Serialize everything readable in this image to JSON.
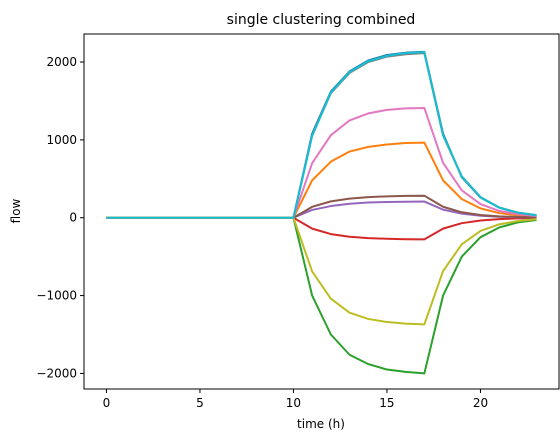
{
  "chart_data": {
    "type": "line",
    "title": "single clustering combined",
    "xlabel": "time (h)",
    "ylabel": "flow",
    "xlim": [
      -1.2,
      24.2
    ],
    "ylim": [
      -2200,
      2360
    ],
    "xticks": [
      0,
      5,
      10,
      15,
      20
    ],
    "yticks": [
      -2000,
      -1000,
      0,
      1000,
      2000
    ],
    "xtick_labels": [
      "0",
      "5",
      "10",
      "15",
      "20"
    ],
    "ytick_labels": [
      "−2000",
      "−1000",
      "0",
      "1000",
      "2000"
    ],
    "grid": false,
    "legend": "none",
    "x": [
      0,
      1,
      2,
      3,
      4,
      5,
      6,
      7,
      8,
      9,
      10,
      11,
      12,
      13,
      14,
      15,
      16,
      17,
      18,
      19,
      20,
      21,
      22,
      23
    ],
    "series": [
      {
        "color": "#1f77b4",
        "values": [
          0,
          0,
          0,
          0,
          0,
          0,
          0,
          0,
          0,
          0,
          0,
          1080,
          1620,
          1880,
          2020,
          2090,
          2120,
          2130,
          1080,
          520,
          260,
          130,
          60,
          30
        ]
      },
      {
        "color": "#ff7f0e",
        "values": [
          0,
          0,
          0,
          0,
          0,
          0,
          0,
          0,
          0,
          0,
          0,
          480,
          720,
          850,
          910,
          940,
          960,
          965,
          480,
          240,
          120,
          60,
          30,
          15
        ]
      },
      {
        "color": "#2ca02c",
        "values": [
          0,
          0,
          0,
          0,
          0,
          0,
          0,
          0,
          0,
          0,
          0,
          -1000,
          -1500,
          -1760,
          -1880,
          -1950,
          -1980,
          -2000,
          -1000,
          -500,
          -250,
          -125,
          -60,
          -30
        ]
      },
      {
        "color": "#d62728",
        "values": [
          0,
          0,
          0,
          0,
          0,
          0,
          0,
          0,
          0,
          0,
          0,
          -140,
          -210,
          -245,
          -262,
          -270,
          -276,
          -278,
          -140,
          -70,
          -35,
          -18,
          -9,
          -4
        ]
      },
      {
        "color": "#9467bd",
        "values": [
          0,
          0,
          0,
          0,
          0,
          0,
          0,
          0,
          0,
          0,
          0,
          100,
          150,
          180,
          195,
          202,
          206,
          208,
          104,
          52,
          26,
          13,
          6,
          3
        ]
      },
      {
        "color": "#8c564b",
        "values": [
          0,
          0,
          0,
          0,
          0,
          0,
          0,
          0,
          0,
          0,
          0,
          140,
          210,
          245,
          265,
          275,
          280,
          283,
          141,
          70,
          35,
          18,
          9,
          4
        ]
      },
      {
        "color": "#e377c2",
        "values": [
          0,
          0,
          0,
          0,
          0,
          0,
          0,
          0,
          0,
          0,
          0,
          700,
          1060,
          1250,
          1340,
          1385,
          1405,
          1410,
          705,
          352,
          176,
          88,
          44,
          22
        ]
      },
      {
        "color": "#7f7f7f",
        "values": [
          0,
          0,
          0,
          0,
          0,
          0,
          0,
          0,
          0,
          0,
          0,
          1060,
          1600,
          1860,
          2000,
          2070,
          2100,
          2115,
          1058,
          530,
          265,
          132,
          66,
          33
        ]
      },
      {
        "color": "#bcbd22",
        "values": [
          0,
          0,
          0,
          0,
          0,
          0,
          0,
          0,
          0,
          0,
          0,
          -690,
          -1040,
          -1220,
          -1300,
          -1340,
          -1360,
          -1370,
          -685,
          -342,
          -170,
          -85,
          -42,
          -20
        ]
      },
      {
        "color": "#17becf",
        "values": [
          0,
          0,
          0,
          0,
          0,
          0,
          0,
          0,
          0,
          0,
          0,
          1050,
          1610,
          1870,
          2010,
          2080,
          2115,
          2125,
          1060,
          530,
          265,
          130,
          65,
          32
        ]
      }
    ]
  }
}
